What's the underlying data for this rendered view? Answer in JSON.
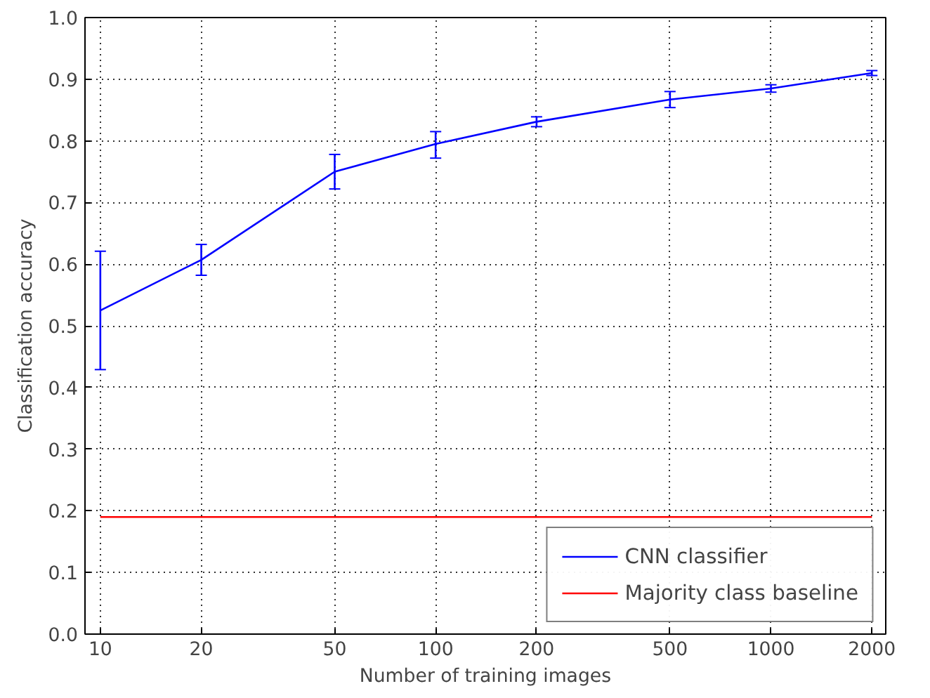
{
  "chart_data": {
    "type": "line",
    "xlabel": "Number of training images",
    "ylabel": "Classification accuracy",
    "log": "x",
    "grid": true,
    "legend": "bottom right",
    "line_style": "solid",
    "xlim": [
      9,
      2200
    ],
    "xticks": [
      10,
      20,
      50,
      100,
      200,
      500,
      1000,
      2000
    ],
    "ylim": [
      0,
      1
    ],
    "yticks": [
      {
        "value": 0,
        "label": "0.0"
      },
      0.1,
      0.2,
      0.3,
      0.4,
      0.5,
      0.6,
      0.7,
      0.8,
      0.9,
      {
        "value": 1,
        "label": "1.0"
      }
    ],
    "series": [
      {
        "name": "CNN classifier",
        "color": "#0000ff",
        "x": [
          10,
          20,
          50,
          100,
          200,
          500,
          1000,
          2000
        ],
        "values": [
          0.525,
          0.607,
          0.75,
          0.795,
          0.831,
          0.867,
          0.885,
          0.91
        ],
        "errors": [
          [
            0.429,
            0.621
          ],
          [
            0.582,
            0.632
          ],
          [
            0.722,
            0.778
          ],
          [
            0.772,
            0.815
          ],
          [
            0.823,
            0.839
          ],
          [
            0.854,
            0.88
          ],
          [
            0.879,
            0.891
          ],
          [
            0.906,
            0.914
          ]
        ]
      },
      {
        "name": "Majority class baseline",
        "color": "#ff0000",
        "x": [
          10,
          2000
        ],
        "values": [
          0.19,
          0.19
        ]
      }
    ]
  }
}
